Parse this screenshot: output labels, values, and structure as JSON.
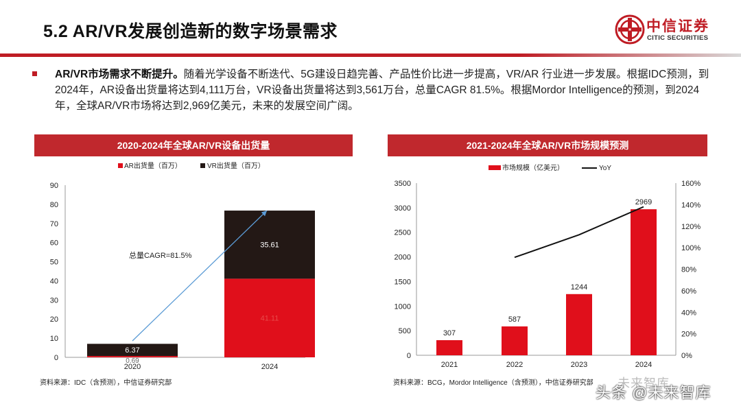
{
  "header": {
    "title": "5.2 AR/VR发展创造新的数字场景需求",
    "logo_text": "中信证券",
    "logo_sub": "CITIC SECURITIES"
  },
  "intro": {
    "lead": "AR/VR市场需求不断提升。",
    "body": "随着光学设备不断迭代、5G建设日趋完善、产品性价比进一步提高，VR/AR 行业进一步发展。根据IDC预测，到2024年，AR设备出货量将达到4,111万台，VR设备出货量将达到3,561万台，总量CAGR  81.5%。根据Mordor Intelligence的预测，到2024年，全球AR/VR市场将达到2,969亿美元，未来的发展空间广阔。"
  },
  "panels": {
    "left_title": "2020-2024年全球AR/VR设备出货量",
    "right_title": "2021-2024年全球AR/VR市场规模预测",
    "left_source": "资料来源：IDC（含预测），中信证券研究部",
    "right_source": "资料来源：BCG，Mordor Intelligence（含预测），中信证券研究部"
  },
  "watermark": {
    "main": "头条 @未来智库",
    "faint": "未来智库"
  },
  "colors": {
    "brand_red": "#bf1c24",
    "bar_red": "#e00f1b",
    "bar_dark": "#231815",
    "cagr_arrow": "#5b9bd5"
  },
  "chart_data": [
    {
      "type": "bar",
      "stacked": true,
      "title": "2020-2024年全球AR/VR设备出货量",
      "categories": [
        "2020",
        "2024"
      ],
      "series": [
        {
          "name": "AR出货量（百万）",
          "values": [
            0.69,
            41.11
          ],
          "labels": [
            "0.69",
            "41.11"
          ]
        },
        {
          "name": "VR出货量（百万）",
          "values": [
            6.37,
            35.61
          ],
          "labels": [
            "6.37",
            "35.61"
          ]
        }
      ],
      "ylim": [
        0,
        90
      ],
      "yticks": [
        0,
        10,
        20,
        30,
        40,
        50,
        60,
        70,
        80,
        90
      ],
      "annotation": "总量CAGR=81.5%",
      "legend": "top"
    },
    {
      "type": "bar",
      "title": "2021-2024年全球AR/VR市场规模预测",
      "categories": [
        "2021",
        "2022",
        "2023",
        "2024"
      ],
      "series": [
        {
          "name": "市场规模（亿美元）",
          "values": [
            307,
            587,
            1244,
            2969
          ],
          "labels": [
            "307",
            "587",
            "1244",
            "2969"
          ]
        },
        {
          "name": "YoY",
          "type": "line",
          "axis": "right",
          "values": [
            null,
            91,
            112,
            138
          ]
        }
      ],
      "ylim": [
        0,
        3500
      ],
      "yticks": [
        0,
        500,
        1000,
        1500,
        2000,
        2500,
        3000,
        3500
      ],
      "y2lim": [
        0,
        160
      ],
      "y2ticks": [
        "0%",
        "20%",
        "40%",
        "60%",
        "80%",
        "100%",
        "120%",
        "140%",
        "160%"
      ],
      "legend": "top"
    }
  ]
}
